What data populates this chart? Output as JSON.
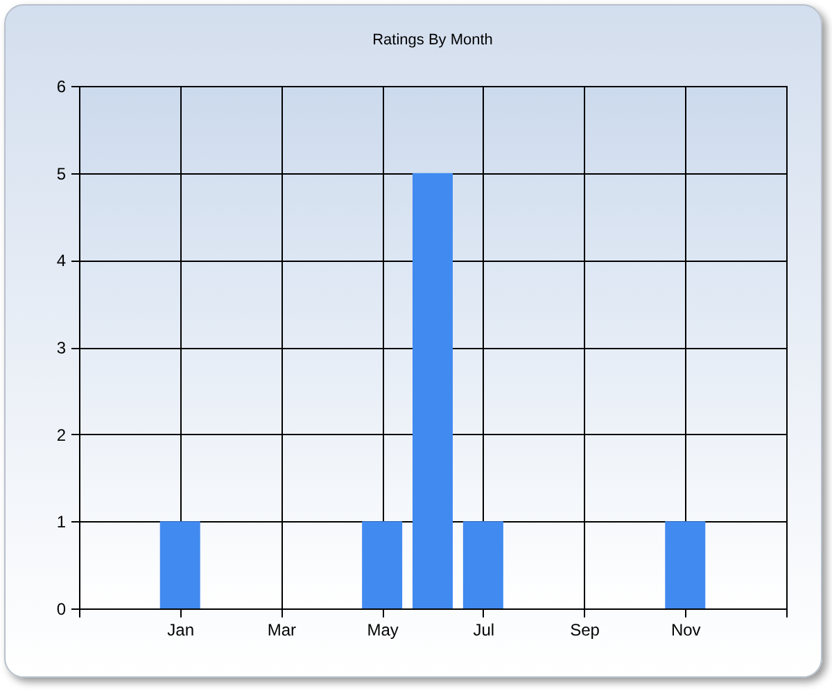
{
  "chart_data": {
    "type": "bar",
    "title": "Ratings By Month",
    "categories": [
      null,
      null,
      "Jan",
      null,
      "Mar",
      null,
      "May",
      null,
      "Jul",
      null,
      "Sep",
      null,
      "Nov",
      null,
      null
    ],
    "values": [
      null,
      null,
      1,
      0,
      0,
      0,
      1,
      5,
      1,
      0,
      0,
      0,
      1,
      0,
      null
    ],
    "color": "#418af0",
    "ylim": [
      0,
      6
    ],
    "yticks": [
      0,
      1,
      2,
      3,
      4,
      5,
      6
    ],
    "grid": true
  }
}
